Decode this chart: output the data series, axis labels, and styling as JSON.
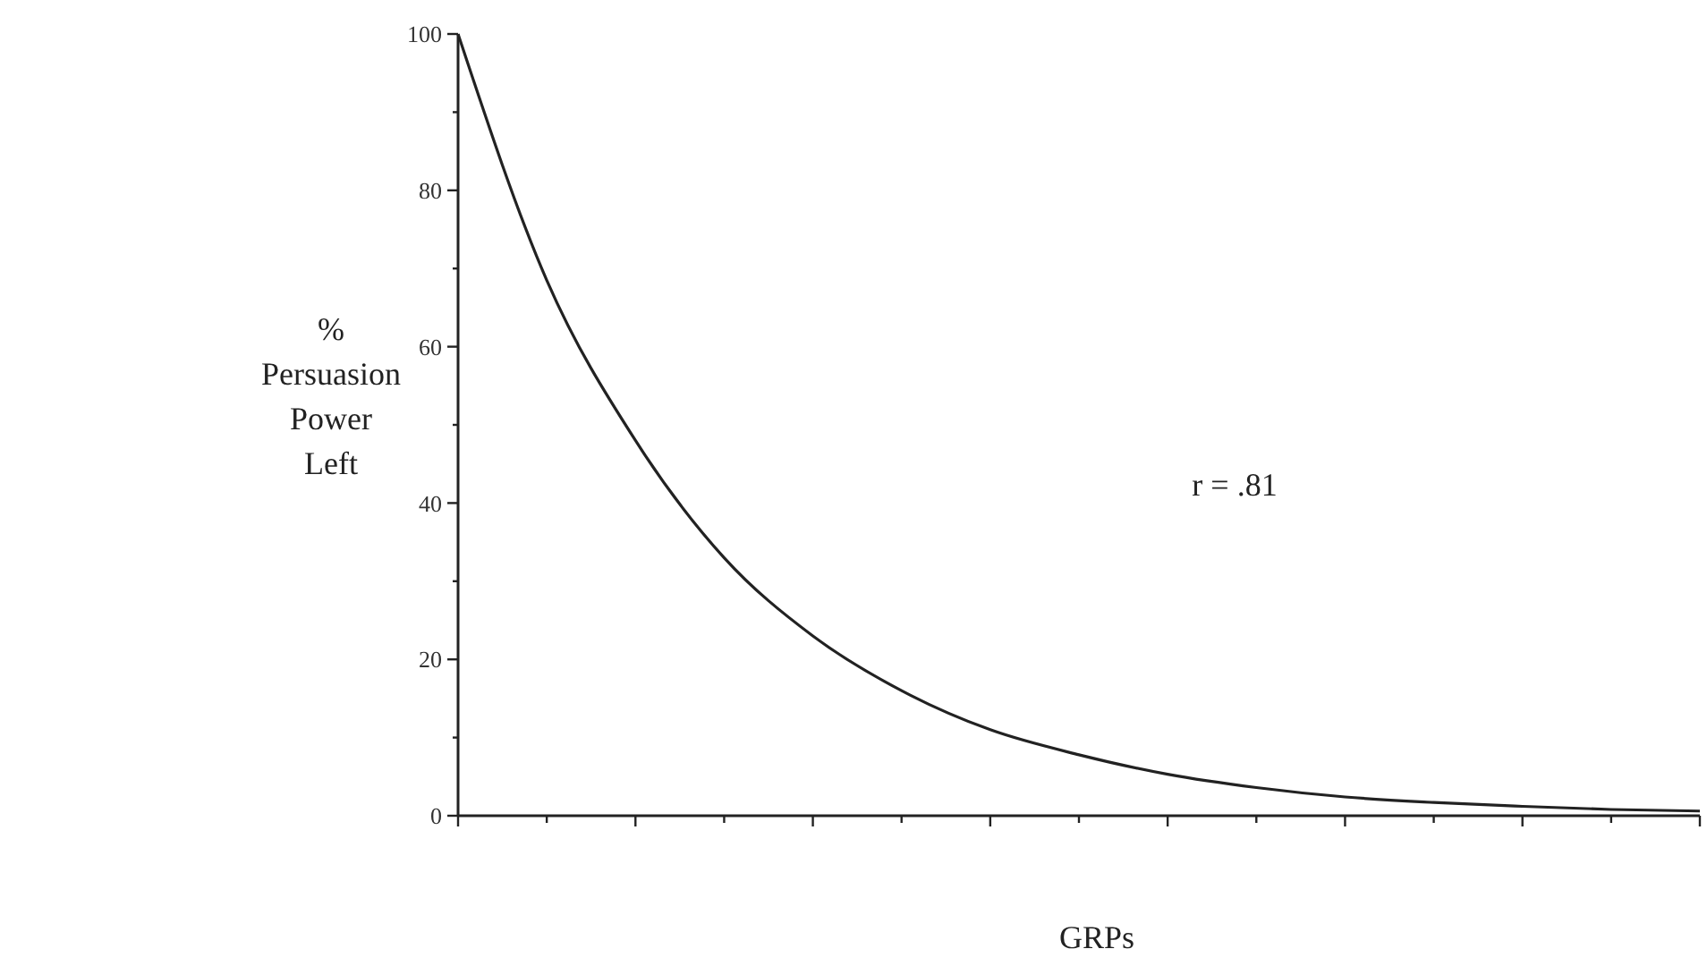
{
  "chart_data": {
    "type": "line",
    "xlabel": "GRPs",
    "ylabel": "% Persuasion Power Left",
    "annotations": [
      "r = .81"
    ],
    "categories": [
      null,
      null,
      null,
      null,
      null,
      null,
      null,
      null,
      null,
      null,
      null,
      null,
      null,
      null,
      null
    ],
    "series": [
      {
        "color": "#222222",
        "values": [
          100,
          68.5,
          48,
          33,
          23,
          16,
          11,
          7.8,
          5.3,
          3.6,
          2.4,
          1.7,
          1.2,
          0.8,
          0.6
        ]
      }
    ],
    "ylim": [
      0,
      100
    ],
    "yticks": [
      0,
      {
        "value": 10,
        "label": null
      },
      20,
      {
        "value": 30,
        "label": null
      },
      40,
      {
        "value": 50,
        "label": null
      },
      60,
      {
        "value": 70,
        "label": null
      },
      80,
      {
        "value": 90,
        "label": null
      },
      100
    ],
    "grid": false,
    "marker": "none",
    "line_style": "solid"
  }
}
